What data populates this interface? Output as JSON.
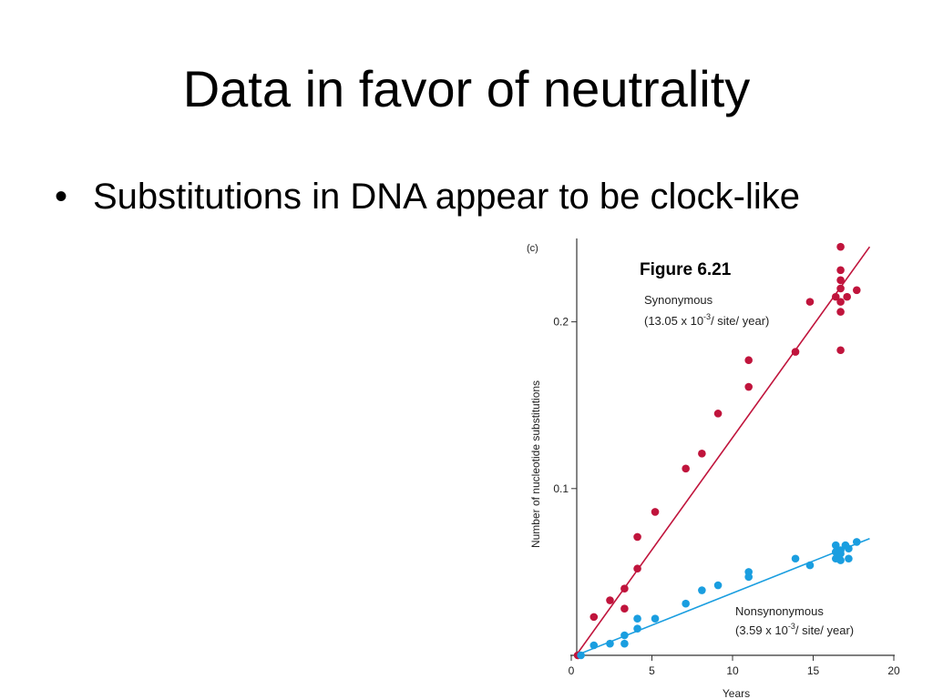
{
  "slide": {
    "title": "Data in favor of neutrality",
    "bullets": [
      {
        "mark": "•",
        "text": "Substitutions in DNA appear to be clock-like"
      }
    ],
    "figure_caption": "Figure 6.21"
  },
  "colors": {
    "synonymous": "#c0143c",
    "nonsynonymous": "#1a9ee0",
    "axis": "#333333"
  },
  "chart_data": {
    "type": "scatter",
    "panel_label": "(c)",
    "xlabel": "Years",
    "ylabel": "Number of nucleotide substitutions",
    "xlim": [
      0,
      20
    ],
    "ylim": [
      0,
      0.25
    ],
    "x_ticks": [
      {
        "value": 0,
        "label": "0"
      },
      {
        "value": 5,
        "label": "5"
      },
      {
        "value": 10,
        "label": "10"
      },
      {
        "value": 15,
        "label": "15"
      },
      {
        "value": 20,
        "label": "20"
      }
    ],
    "y_ticks": [
      {
        "value": 0.1,
        "label": "0.1"
      },
      {
        "value": 0.2,
        "label": "0.2"
      }
    ],
    "grid": false,
    "series": [
      {
        "name": "Synonymous",
        "rate_label": "(13.05 x 10",
        "rate_exponent": "-3",
        "rate_suffix": "/ site/ year)",
        "color": "#c0143c",
        "trend_line": {
          "x": [
            0.3,
            18.5
          ],
          "y": [
            0,
            0.245
          ]
        },
        "points": [
          {
            "x": 0.4,
            "y": 0.0
          },
          {
            "x": 1.4,
            "y": 0.023
          },
          {
            "x": 2.4,
            "y": 0.033
          },
          {
            "x": 3.3,
            "y": 0.028
          },
          {
            "x": 3.3,
            "y": 0.04
          },
          {
            "x": 4.1,
            "y": 0.052
          },
          {
            "x": 4.1,
            "y": 0.071
          },
          {
            "x": 5.2,
            "y": 0.086
          },
          {
            "x": 7.1,
            "y": 0.112
          },
          {
            "x": 8.1,
            "y": 0.121
          },
          {
            "x": 9.1,
            "y": 0.145
          },
          {
            "x": 11.0,
            "y": 0.161
          },
          {
            "x": 11.0,
            "y": 0.177
          },
          {
            "x": 13.9,
            "y": 0.182
          },
          {
            "x": 14.8,
            "y": 0.212
          },
          {
            "x": 16.4,
            "y": 0.215
          },
          {
            "x": 16.7,
            "y": 0.183
          },
          {
            "x": 16.7,
            "y": 0.206
          },
          {
            "x": 16.7,
            "y": 0.212
          },
          {
            "x": 16.7,
            "y": 0.22
          },
          {
            "x": 16.7,
            "y": 0.225
          },
          {
            "x": 16.7,
            "y": 0.231
          },
          {
            "x": 16.7,
            "y": 0.245
          },
          {
            "x": 17.1,
            "y": 0.215
          },
          {
            "x": 17.7,
            "y": 0.219
          }
        ]
      },
      {
        "name": "Nonsynonymous",
        "rate_label": "(3.59 x 10",
        "rate_exponent": "-3",
        "rate_suffix": "/ site/ year)",
        "color": "#1a9ee0",
        "trend_line": {
          "x": [
            0.3,
            18.5
          ],
          "y": [
            0,
            0.07
          ]
        },
        "points": [
          {
            "x": 0.6,
            "y": 0.0
          },
          {
            "x": 1.4,
            "y": 0.006
          },
          {
            "x": 2.4,
            "y": 0.007
          },
          {
            "x": 3.3,
            "y": 0.007
          },
          {
            "x": 3.3,
            "y": 0.012
          },
          {
            "x": 4.1,
            "y": 0.016
          },
          {
            "x": 4.1,
            "y": 0.022
          },
          {
            "x": 5.2,
            "y": 0.022
          },
          {
            "x": 7.1,
            "y": 0.031
          },
          {
            "x": 8.1,
            "y": 0.039
          },
          {
            "x": 9.1,
            "y": 0.042
          },
          {
            "x": 11.0,
            "y": 0.047
          },
          {
            "x": 11.0,
            "y": 0.05
          },
          {
            "x": 13.9,
            "y": 0.058
          },
          {
            "x": 14.8,
            "y": 0.054
          },
          {
            "x": 16.4,
            "y": 0.058
          },
          {
            "x": 16.4,
            "y": 0.062
          },
          {
            "x": 16.4,
            "y": 0.066
          },
          {
            "x": 16.7,
            "y": 0.057
          },
          {
            "x": 16.7,
            "y": 0.061
          },
          {
            "x": 16.7,
            "y": 0.063
          },
          {
            "x": 17.0,
            "y": 0.066
          },
          {
            "x": 17.2,
            "y": 0.058
          },
          {
            "x": 17.2,
            "y": 0.064
          },
          {
            "x": 17.7,
            "y": 0.068
          }
        ]
      }
    ]
  }
}
